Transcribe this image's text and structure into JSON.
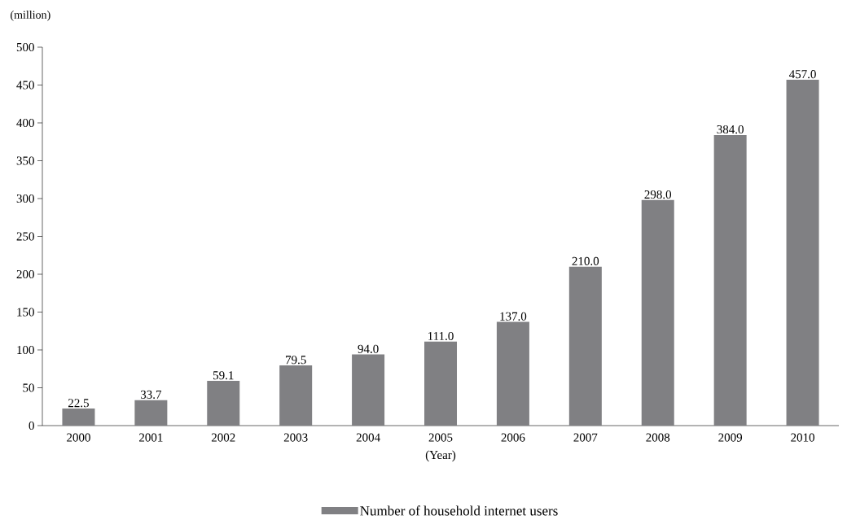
{
  "chart_data": {
    "type": "bar",
    "xlabel": "(Year)",
    "ylabel": "(million)",
    "categories": [
      "2000",
      "2001",
      "2002",
      "2003",
      "2004",
      "2005",
      "2006",
      "2007",
      "2008",
      "2009",
      "2010"
    ],
    "series": [
      {
        "name": "Number of household internet users",
        "color": "#808083",
        "values": [
          22.5,
          33.7,
          59.1,
          79.5,
          94.0,
          111.0,
          137.0,
          210.0,
          298.0,
          384.0,
          457.0
        ],
        "value_labels": [
          "22.5",
          "33.7",
          "59.1",
          "79.5",
          "94.0",
          "111.0",
          "137.0",
          "210.0",
          "298.0",
          "384.0",
          "457.0"
        ]
      }
    ],
    "ylim": [
      0,
      500
    ],
    "yticks": [
      0,
      50,
      100,
      150,
      200,
      250,
      300,
      350,
      400,
      450,
      500
    ],
    "grid": false,
    "legend": "bottom"
  }
}
